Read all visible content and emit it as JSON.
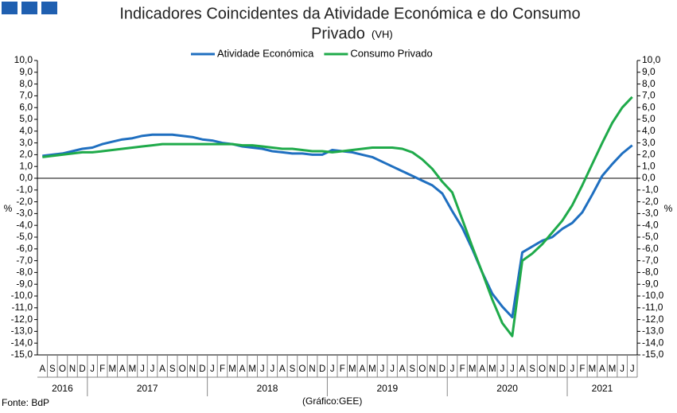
{
  "chart_data": {
    "type": "line",
    "title": [
      "Indicadores Coincidentes da Atividade Económica e do Consumo",
      "Privado"
    ],
    "title_note": "(VH)",
    "ylabel": "%",
    "y2label": "%",
    "source": "Fonte: BdP",
    "note": "(Gráfico:GEE)",
    "categories": [
      "A",
      "S",
      "O",
      "N",
      "D",
      "J",
      "F",
      "M",
      "A",
      "M",
      "J",
      "J",
      "A",
      "S",
      "O",
      "N",
      "D",
      "J",
      "F",
      "M",
      "A",
      "M",
      "J",
      "J",
      "A",
      "S",
      "O",
      "N",
      "D",
      "J",
      "F",
      "M",
      "A",
      "M",
      "J",
      "J",
      "A",
      "S",
      "O",
      "N",
      "D",
      "J",
      "F",
      "M",
      "A",
      "M",
      "J",
      "J",
      "A",
      "S",
      "O",
      "N",
      "D",
      "J",
      "F",
      "M",
      "A",
      "M",
      "J",
      "J"
    ],
    "years": [
      "2016",
      "2017",
      "2018",
      "2019",
      "2020",
      "2021"
    ],
    "series": [
      {
        "name": "Atividade Económica",
        "color": "#1f6fc0",
        "values": [
          1.9,
          2.0,
          2.1,
          2.3,
          2.5,
          2.6,
          2.9,
          3.1,
          3.3,
          3.4,
          3.6,
          3.7,
          3.7,
          3.7,
          3.6,
          3.5,
          3.3,
          3.2,
          3.0,
          2.9,
          2.7,
          2.6,
          2.5,
          2.3,
          2.2,
          2.1,
          2.1,
          2.0,
          2.0,
          2.4,
          2.3,
          2.2,
          2.0,
          1.8,
          1.4,
          1.0,
          0.6,
          0.2,
          -0.2,
          -0.6,
          -1.3,
          -2.8,
          -4.2,
          -6.0,
          -8.0,
          -9.8,
          -10.9,
          -11.8,
          -6.3,
          -5.8,
          -5.3,
          -5.0,
          -4.3,
          -3.8,
          -2.9,
          -1.4,
          0.2,
          1.2,
          2.1,
          2.8
        ]
      },
      {
        "name": "Consumo Privado",
        "color": "#1faa4a",
        "values": [
          1.8,
          1.9,
          2.0,
          2.1,
          2.2,
          2.2,
          2.3,
          2.4,
          2.5,
          2.6,
          2.7,
          2.8,
          2.9,
          2.9,
          2.9,
          2.9,
          2.9,
          2.9,
          2.9,
          2.9,
          2.8,
          2.8,
          2.7,
          2.6,
          2.5,
          2.5,
          2.4,
          2.3,
          2.3,
          2.2,
          2.3,
          2.4,
          2.5,
          2.6,
          2.6,
          2.6,
          2.5,
          2.2,
          1.6,
          0.8,
          -0.3,
          -1.2,
          -3.5,
          -5.8,
          -8.0,
          -10.3,
          -12.3,
          -13.4,
          -7.0,
          -6.4,
          -5.6,
          -4.6,
          -3.6,
          -2.3,
          -0.6,
          1.2,
          3.0,
          4.7,
          6.0,
          6.9
        ]
      }
    ],
    "ylim": [
      -15,
      10
    ],
    "yticks": [
      {
        "value": 10,
        "label": "10,0"
      },
      {
        "value": 9,
        "label": "9,0"
      },
      {
        "value": 8,
        "label": "8,0"
      },
      {
        "value": 7,
        "label": "7,0"
      },
      {
        "value": 6,
        "label": "6,0"
      },
      {
        "value": 5,
        "label": "5,0"
      },
      {
        "value": 4,
        "label": "4,0"
      },
      {
        "value": 3,
        "label": "3,0"
      },
      {
        "value": 2,
        "label": "2,0"
      },
      {
        "value": 1,
        "label": "1,0"
      },
      {
        "value": 0,
        "label": "0,0"
      },
      {
        "value": -1,
        "label": "-1,0"
      },
      {
        "value": -2,
        "label": "-2,0"
      },
      {
        "value": -3,
        "label": "-3,0"
      },
      {
        "value": -4,
        "label": "-4,0"
      },
      {
        "value": -5,
        "label": "-5,0"
      },
      {
        "value": -6,
        "label": "-6,0"
      },
      {
        "value": -7,
        "label": "-7,0"
      },
      {
        "value": -8,
        "label": "-8,0"
      },
      {
        "value": -9,
        "label": "-9,0"
      },
      {
        "value": -10,
        "label": "-10,0"
      },
      {
        "value": -11,
        "label": "-11,0"
      },
      {
        "value": -12,
        "label": "-12,0"
      },
      {
        "value": -13,
        "label": "-13,0"
      },
      {
        "value": -14,
        "label": "-14,0"
      },
      {
        "value": -15,
        "label": "-15,0"
      }
    ],
    "y2lim": [
      -15,
      10
    ],
    "y2ticks": [
      {
        "value": 10,
        "label": "10,0"
      },
      {
        "value": 9,
        "label": "9,0"
      },
      {
        "value": 8,
        "label": "8,0"
      },
      {
        "value": 7,
        "label": "7,0"
      },
      {
        "value": 6,
        "label": "6,0"
      },
      {
        "value": 5,
        "label": "5,0"
      },
      {
        "value": 4,
        "label": "4,0"
      },
      {
        "value": 3,
        "label": "3,0"
      },
      {
        "value": 2,
        "label": "2,0"
      },
      {
        "value": 1,
        "label": "1,0"
      },
      {
        "value": 0,
        "label": "0,0"
      },
      {
        "value": -1,
        "label": "-1,0"
      },
      {
        "value": -2,
        "label": "-2,0"
      },
      {
        "value": -3,
        "label": "-3,0"
      },
      {
        "value": -4,
        "label": "-4,0"
      },
      {
        "value": -5,
        "label": "-5,0"
      },
      {
        "value": -6,
        "label": "-6,0"
      },
      {
        "value": -7,
        "label": "-7,0"
      },
      {
        "value": -8,
        "label": "-8,0"
      },
      {
        "value": -9,
        "label": "-9,0"
      },
      {
        "value": -10,
        "label": "-10,0"
      },
      {
        "value": -11,
        "label": "-11,0"
      },
      {
        "value": -12,
        "label": "-12,0"
      },
      {
        "value": -13,
        "label": "-13,0"
      },
      {
        "value": -14,
        "label": "-14,0"
      },
      {
        "value": -15,
        "label": "-15,0"
      }
    ],
    "legend": "top",
    "grid": false
  }
}
